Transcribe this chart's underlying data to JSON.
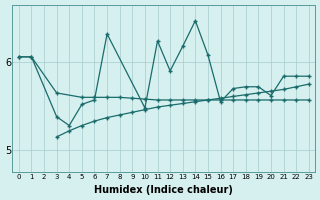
{
  "xlabel": "Humidex (Indice chaleur)",
  "bg_color": "#d6f0ef",
  "grid_color": "#a8cccc",
  "line_color": "#1a6b6b",
  "xlim": [
    -0.5,
    23.5
  ],
  "ylim": [
    4.75,
    6.65
  ],
  "yticks": [
    5,
    6
  ],
  "xticks": [
    0,
    1,
    2,
    3,
    4,
    5,
    6,
    7,
    8,
    9,
    10,
    11,
    12,
    13,
    14,
    15,
    16,
    17,
    18,
    19,
    20,
    21,
    22,
    23
  ],
  "series": [
    {
      "x": [
        0,
        1,
        3,
        4,
        5,
        6,
        7,
        10,
        11,
        12,
        13,
        14,
        15,
        16,
        17,
        18,
        19,
        20,
        21,
        22,
        23
      ],
      "y": [
        6.06,
        6.06,
        5.38,
        5.28,
        5.52,
        5.57,
        6.32,
        5.48,
        6.24,
        5.9,
        6.18,
        6.47,
        6.08,
        5.55,
        5.7,
        5.72,
        5.72,
        5.62,
        5.84,
        5.84,
        5.84
      ]
    },
    {
      "x": [
        0,
        1,
        3,
        5,
        6,
        7,
        8,
        9,
        10,
        11,
        12,
        13,
        14,
        15,
        16,
        17,
        18,
        19,
        20,
        21,
        22,
        23
      ],
      "y": [
        6.06,
        6.06,
        5.65,
        5.6,
        5.6,
        5.6,
        5.6,
        5.59,
        5.58,
        5.57,
        5.57,
        5.57,
        5.57,
        5.57,
        5.57,
        5.57,
        5.57,
        5.57,
        5.57,
        5.57,
        5.57,
        5.57
      ]
    },
    {
      "x": [
        3,
        4,
        5,
        6,
        7,
        8,
        9,
        10,
        11,
        12,
        13,
        14,
        15,
        16,
        17,
        18,
        19,
        20,
        21,
        22,
        23
      ],
      "y": [
        5.15,
        5.22,
        5.28,
        5.33,
        5.37,
        5.4,
        5.43,
        5.46,
        5.49,
        5.51,
        5.53,
        5.55,
        5.57,
        5.59,
        5.61,
        5.63,
        5.65,
        5.67,
        5.69,
        5.72,
        5.75
      ]
    }
  ]
}
